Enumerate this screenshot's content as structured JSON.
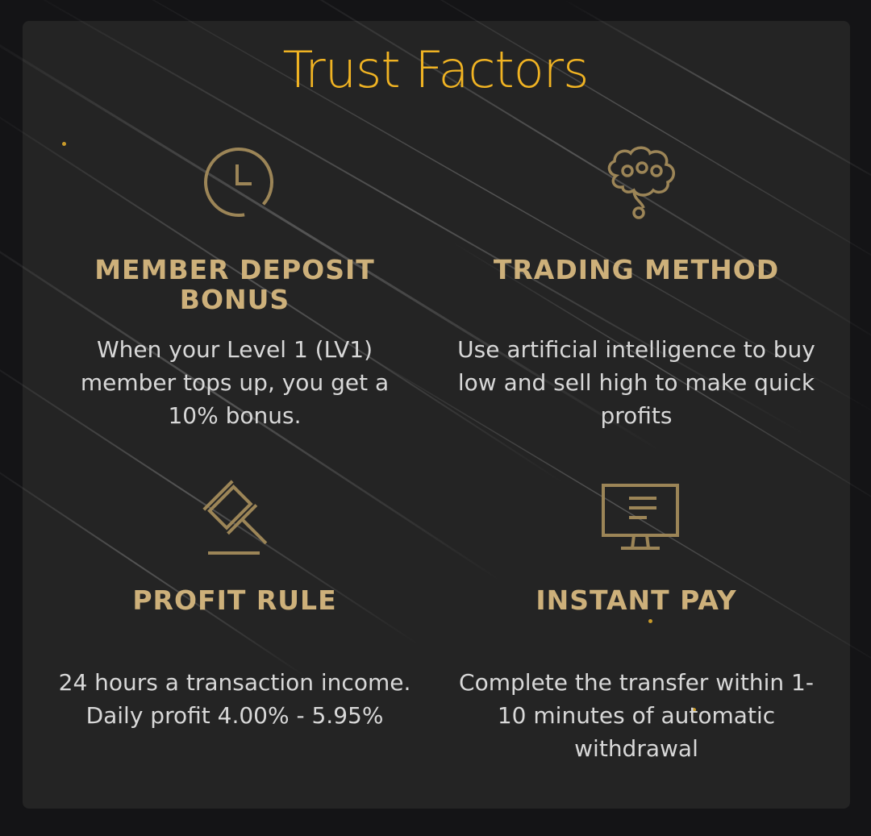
{
  "section": {
    "title": "Trust Factors"
  },
  "colors": {
    "accent": "#f0b323",
    "heading": "#cdb07a",
    "icon": "#9c8557",
    "text": "#d8d8d8",
    "panel": "#242424",
    "background": "#141416"
  },
  "features": [
    {
      "icon": "clock-icon",
      "heading": "MEMBER DEPOSIT BONUS",
      "description": "When your Level 1 (LV1) member tops up, you get a 10% bonus."
    },
    {
      "icon": "brain-icon",
      "heading": "TRADING METHOD",
      "description": "Use artificial intelligence to buy low and sell high to make quick profits"
    },
    {
      "icon": "gavel-icon",
      "heading": "PROFIT RULE",
      "description": "24 hours a transaction income. Daily profit 4.00% - 5.95%"
    },
    {
      "icon": "monitor-icon",
      "heading": "INSTANT PAY",
      "description": "Complete the transfer within 1-10 minutes of automatic withdrawal"
    }
  ]
}
